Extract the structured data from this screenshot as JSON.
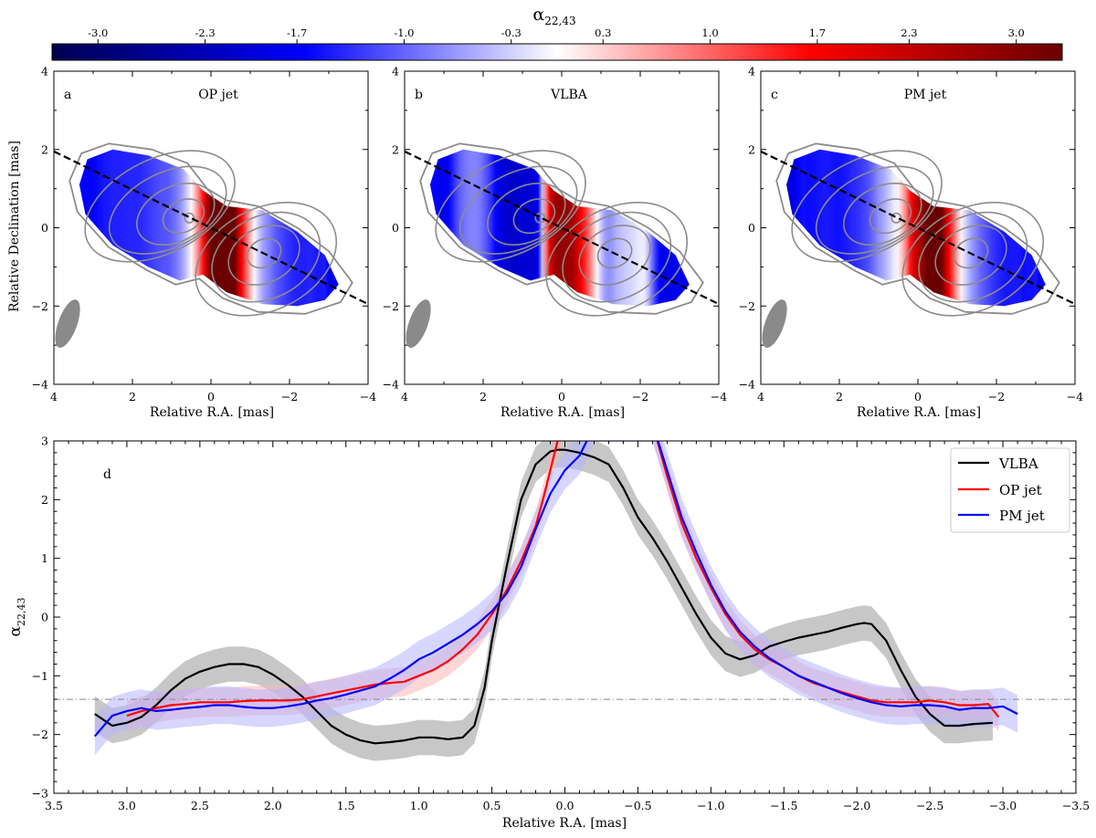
{
  "colorbar": {
    "label": "α22,43",
    "label_main": "α",
    "label_sub": "22,43",
    "min": -3.3,
    "max": 3.3,
    "ticks": [
      "-3.0",
      "-2.3",
      "-1.7",
      "-1.0",
      "-0.3",
      "0.3",
      "1.0",
      "1.7",
      "2.3",
      "3.0"
    ],
    "tick_values": [
      -3.0,
      -2.3,
      -1.7,
      -1.0,
      -0.3,
      0.3,
      1.0,
      1.7,
      2.3,
      3.0
    ],
    "colors": [
      "#000050",
      "#0000ff",
      "#ffffff",
      "#ff0000",
      "#6b0000"
    ]
  },
  "maps": [
    {
      "letter": "a",
      "title": "OP jet",
      "profile": "op"
    },
    {
      "letter": "b",
      "title": "VLBA",
      "profile": "vlba"
    },
    {
      "letter": "c",
      "title": "PM jet",
      "profile": "pm"
    }
  ],
  "map_axes": {
    "xlabel": "Relative R.A. [mas]",
    "ylabel": "Relative Declination [mas]",
    "xlim": [
      4,
      -4
    ],
    "ylim": [
      -4,
      4
    ],
    "xticks": [
      4,
      2,
      0,
      -2,
      -4
    ],
    "yticks": [
      4,
      2,
      0,
      -2,
      -4
    ],
    "xtick_labels": [
      "4",
      "2",
      "0",
      "−2",
      "−4"
    ],
    "ytick_labels": [
      "4",
      "2",
      "0",
      "−2",
      "−4"
    ],
    "cut_line": {
      "from": [
        4,
        1.95
      ],
      "to": [
        -4,
        -1.95
      ]
    },
    "beam": {
      "x": 3.65,
      "y": -2.45,
      "major_axis": 1.3,
      "minor_axis": 0.48,
      "pa_deg": 20
    },
    "contour_color": "#8c8c8c"
  },
  "chart_data": {
    "type": "line",
    "panel_letter": "d",
    "xlabel": "Relative R.A. [mas]",
    "ylabel": "α22,43",
    "ylabel_main": "α",
    "ylabel_sub": "22,43",
    "xlim": [
      3.5,
      -3.5
    ],
    "ylim": [
      -3,
      3
    ],
    "xticks": [
      3.5,
      3.0,
      2.5,
      2.0,
      1.5,
      1.0,
      0.5,
      0.0,
      -0.5,
      -1.0,
      -1.5,
      -2.0,
      -2.5,
      -3.0,
      -3.5
    ],
    "xtick_labels": [
      "3.5",
      "3.0",
      "2.5",
      "2.0",
      "1.5",
      "1.0",
      "0.5",
      "0.0",
      "−0.5",
      "−1.0",
      "−1.5",
      "−2.0",
      "−2.5",
      "−3.0",
      "−3.5"
    ],
    "yticks": [
      -3,
      -2,
      -1,
      0,
      1,
      2,
      3
    ],
    "ytick_labels": [
      "−3",
      "−2",
      "−1",
      "0",
      "1",
      "2",
      "3"
    ],
    "reference_line": -1.4,
    "legend": {
      "placement": "top-right",
      "entries": [
        "VLBA",
        "OP jet",
        "PM jet"
      ]
    },
    "series": [
      {
        "name": "VLBA",
        "color": "#000000",
        "band_color": "#b4b4b4",
        "x": [
          3.22,
          3.1,
          3.0,
          2.9,
          2.8,
          2.7,
          2.6,
          2.5,
          2.4,
          2.3,
          2.2,
          2.1,
          2.0,
          1.9,
          1.8,
          1.7,
          1.6,
          1.5,
          1.4,
          1.3,
          1.2,
          1.1,
          1.0,
          0.9,
          0.8,
          0.7,
          0.62,
          0.55,
          0.5,
          0.4,
          0.3,
          0.2,
          0.1,
          0.05,
          0.0,
          -0.1,
          -0.2,
          -0.3,
          -0.4,
          -0.5,
          -0.6,
          -0.7,
          -0.8,
          -0.9,
          -1.0,
          -1.1,
          -1.2,
          -1.3,
          -1.4,
          -1.5,
          -1.6,
          -1.7,
          -1.8,
          -1.9,
          -2.0,
          -2.05,
          -2.1,
          -2.2,
          -2.3,
          -2.4,
          -2.5,
          -2.6,
          -2.7,
          -2.8,
          -2.93
        ],
        "values": [
          -1.65,
          -1.85,
          -1.8,
          -1.7,
          -1.5,
          -1.25,
          -1.05,
          -0.93,
          -0.85,
          -0.8,
          -0.8,
          -0.85,
          -0.98,
          -1.15,
          -1.35,
          -1.6,
          -1.85,
          -2.0,
          -2.1,
          -2.15,
          -2.13,
          -2.1,
          -2.05,
          -2.05,
          -2.08,
          -2.05,
          -1.85,
          -1.2,
          -0.4,
          0.85,
          2.0,
          2.6,
          2.82,
          2.85,
          2.85,
          2.8,
          2.72,
          2.6,
          2.2,
          1.7,
          1.35,
          0.95,
          0.5,
          0.05,
          -0.35,
          -0.62,
          -0.72,
          -0.65,
          -0.5,
          -0.42,
          -0.35,
          -0.3,
          -0.25,
          -0.18,
          -0.12,
          -0.1,
          -0.12,
          -0.4,
          -0.9,
          -1.35,
          -1.65,
          -1.85,
          -1.85,
          -1.82,
          -1.8
        ],
        "uncertainty": 0.3
      },
      {
        "name": "OP jet",
        "color": "#ff0000",
        "band_color": "#ffb4b4",
        "x": [
          3.0,
          2.9,
          2.8,
          2.7,
          2.6,
          2.5,
          2.4,
          2.3,
          2.2,
          2.1,
          2.0,
          1.9,
          1.8,
          1.7,
          1.6,
          1.5,
          1.4,
          1.3,
          1.2,
          1.1,
          1.0,
          0.9,
          0.8,
          0.7,
          0.6,
          0.5,
          0.4,
          0.3,
          0.2,
          0.15,
          0.1,
          0.05,
          0.0,
          -0.6,
          -0.7,
          -0.8,
          -0.9,
          -1.0,
          -1.1,
          -1.2,
          -1.3,
          -1.4,
          -1.5,
          -1.6,
          -1.7,
          -1.8,
          -1.9,
          -2.0,
          -2.1,
          -2.2,
          -2.3,
          -2.4,
          -2.5,
          -2.6,
          -2.7,
          -2.8,
          -2.9,
          -2.97
        ],
        "values": [
          -1.68,
          -1.6,
          -1.55,
          -1.5,
          -1.48,
          -1.45,
          -1.45,
          -1.45,
          -1.43,
          -1.42,
          -1.42,
          -1.42,
          -1.4,
          -1.35,
          -1.3,
          -1.25,
          -1.2,
          -1.15,
          -1.12,
          -1.1,
          -1.0,
          -0.9,
          -0.75,
          -0.55,
          -0.3,
          0.05,
          0.45,
          0.95,
          1.55,
          2.0,
          2.5,
          3.0,
          3.3,
          3.3,
          2.4,
          1.6,
          1.0,
          0.5,
          0.05,
          -0.3,
          -0.55,
          -0.72,
          -0.85,
          -1.0,
          -1.12,
          -1.2,
          -1.28,
          -1.35,
          -1.42,
          -1.45,
          -1.45,
          -1.45,
          -1.42,
          -1.45,
          -1.5,
          -1.5,
          -1.48,
          -1.7
        ],
        "uncertainty": 0.25
      },
      {
        "name": "PM jet",
        "color": "#0000ff",
        "band_color": "#b4b4ff",
        "x": [
          3.22,
          3.1,
          3.0,
          2.9,
          2.8,
          2.7,
          2.6,
          2.5,
          2.4,
          2.3,
          2.2,
          2.1,
          2.0,
          1.9,
          1.8,
          1.7,
          1.6,
          1.5,
          1.4,
          1.3,
          1.2,
          1.1,
          1.0,
          0.9,
          0.8,
          0.7,
          0.6,
          0.5,
          0.4,
          0.3,
          0.2,
          0.1,
          0.0,
          -0.1,
          -0.15,
          -0.2,
          -0.6,
          -0.7,
          -0.8,
          -0.9,
          -1.0,
          -1.1,
          -1.2,
          -1.3,
          -1.4,
          -1.5,
          -1.6,
          -1.7,
          -1.8,
          -1.9,
          -2.0,
          -2.1,
          -2.2,
          -2.3,
          -2.4,
          -2.5,
          -2.6,
          -2.7,
          -2.8,
          -2.9,
          -3.0,
          -3.1
        ],
        "values": [
          -2.03,
          -1.68,
          -1.6,
          -1.55,
          -1.6,
          -1.58,
          -1.55,
          -1.53,
          -1.5,
          -1.5,
          -1.53,
          -1.55,
          -1.55,
          -1.52,
          -1.48,
          -1.42,
          -1.38,
          -1.32,
          -1.25,
          -1.18,
          -1.05,
          -0.9,
          -0.72,
          -0.6,
          -0.45,
          -0.3,
          -0.12,
          0.1,
          0.4,
          0.85,
          1.5,
          2.1,
          2.5,
          2.75,
          3.0,
          3.3,
          3.3,
          2.5,
          1.7,
          1.1,
          0.55,
          0.1,
          -0.25,
          -0.5,
          -0.7,
          -0.85,
          -1.0,
          -1.1,
          -1.2,
          -1.3,
          -1.38,
          -1.45,
          -1.5,
          -1.52,
          -1.5,
          -1.5,
          -1.52,
          -1.58,
          -1.55,
          -1.55,
          -1.52,
          -1.65
        ],
        "uncertainty": 0.32
      }
    ]
  }
}
